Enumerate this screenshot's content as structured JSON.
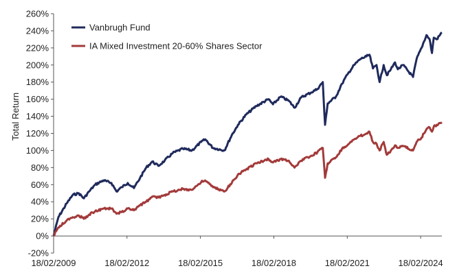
{
  "chart_data": {
    "type": "line",
    "title": "",
    "xlabel": "",
    "ylabel": "Total Return",
    "x_ticks": [
      "18/02/2009",
      "18/02/2012",
      "18/02/2015",
      "18/02/2018",
      "18/02/2021",
      "18/02/2024"
    ],
    "y_ticks": [
      "-20%",
      "0%",
      "20%",
      "40%",
      "60%",
      "80%",
      "100%",
      "120%",
      "140%",
      "160%",
      "180%",
      "200%",
      "220%",
      "240%",
      "260%"
    ],
    "ylim": [
      -20,
      260
    ],
    "x_range": [
      "2009-02-18",
      "2024-12-31"
    ],
    "grid": false,
    "legend_position": "top-left",
    "series": [
      {
        "name": "Vanbrugh Fund",
        "color": "#1f2a5c",
        "points": [
          [
            "2009-02-18",
            0
          ],
          [
            "2009-05-01",
            22
          ],
          [
            "2009-09-01",
            38
          ],
          [
            "2009-12-01",
            48
          ],
          [
            "2010-03-01",
            50
          ],
          [
            "2010-05-15",
            44
          ],
          [
            "2010-08-01",
            52
          ],
          [
            "2010-11-01",
            60
          ],
          [
            "2011-03-01",
            65
          ],
          [
            "2011-07-01",
            62
          ],
          [
            "2011-09-15",
            52
          ],
          [
            "2011-12-01",
            57
          ],
          [
            "2012-03-01",
            62
          ],
          [
            "2012-06-01",
            56
          ],
          [
            "2012-09-01",
            68
          ],
          [
            "2012-12-01",
            80
          ],
          [
            "2013-03-01",
            87
          ],
          [
            "2013-06-01",
            82
          ],
          [
            "2013-09-01",
            88
          ],
          [
            "2014-01-01",
            97
          ],
          [
            "2014-06-01",
            102
          ],
          [
            "2014-10-15",
            100
          ],
          [
            "2015-03-01",
            110
          ],
          [
            "2015-05-01",
            113
          ],
          [
            "2015-08-25",
            103
          ],
          [
            "2016-02-11",
            100
          ],
          [
            "2016-06-01",
            118
          ],
          [
            "2016-09-01",
            130
          ],
          [
            "2017-01-01",
            142
          ],
          [
            "2017-06-01",
            152
          ],
          [
            "2017-12-01",
            160
          ],
          [
            "2018-02-05",
            154
          ],
          [
            "2018-06-01",
            163
          ],
          [
            "2018-10-01",
            158
          ],
          [
            "2018-12-24",
            150
          ],
          [
            "2019-04-01",
            162
          ],
          [
            "2019-09-01",
            168
          ],
          [
            "2019-12-01",
            172
          ],
          [
            "2020-02-19",
            180
          ],
          [
            "2020-03-12",
            145
          ],
          [
            "2020-03-23",
            130
          ],
          [
            "2020-05-01",
            155
          ],
          [
            "2020-09-01",
            163
          ],
          [
            "2020-12-01",
            178
          ],
          [
            "2021-03-01",
            190
          ],
          [
            "2021-06-01",
            200
          ],
          [
            "2021-09-01",
            207
          ],
          [
            "2021-12-01",
            210
          ],
          [
            "2022-01-15",
            212
          ],
          [
            "2022-03-08",
            196
          ],
          [
            "2022-05-01",
            200
          ],
          [
            "2022-06-16",
            180
          ],
          [
            "2022-08-15",
            200
          ],
          [
            "2022-10-01",
            188
          ],
          [
            "2022-12-01",
            195
          ],
          [
            "2023-02-01",
            203
          ],
          [
            "2023-03-15",
            195
          ],
          [
            "2023-06-01",
            200
          ],
          [
            "2023-10-27",
            186
          ],
          [
            "2023-12-20",
            207
          ],
          [
            "2024-03-01",
            220
          ],
          [
            "2024-05-15",
            235
          ],
          [
            "2024-07-01",
            230
          ],
          [
            "2024-08-05",
            214
          ],
          [
            "2024-09-01",
            232
          ],
          [
            "2024-10-15",
            230
          ],
          [
            "2024-12-31",
            238
          ]
        ]
      },
      {
        "name": "IA Mixed Investment 20-60% Shares Sector",
        "color": "#a33a3a",
        "points": [
          [
            "2009-02-18",
            0
          ],
          [
            "2009-05-01",
            10
          ],
          [
            "2009-09-01",
            18
          ],
          [
            "2009-12-01",
            22
          ],
          [
            "2010-03-01",
            24
          ],
          [
            "2010-05-15",
            20
          ],
          [
            "2010-08-01",
            25
          ],
          [
            "2010-11-01",
            29
          ],
          [
            "2011-03-01",
            32
          ],
          [
            "2011-07-01",
            32
          ],
          [
            "2011-09-15",
            26
          ],
          [
            "2011-12-01",
            28
          ],
          [
            "2012-03-01",
            32
          ],
          [
            "2012-06-01",
            30
          ],
          [
            "2012-09-01",
            36
          ],
          [
            "2012-12-01",
            40
          ],
          [
            "2013-03-01",
            46
          ],
          [
            "2013-06-01",
            45
          ],
          [
            "2013-09-01",
            48
          ],
          [
            "2014-01-01",
            52
          ],
          [
            "2014-06-01",
            55
          ],
          [
            "2014-10-15",
            54
          ],
          [
            "2015-03-01",
            63
          ],
          [
            "2015-05-01",
            65
          ],
          [
            "2015-08-25",
            57
          ],
          [
            "2016-02-11",
            52
          ],
          [
            "2016-06-01",
            62
          ],
          [
            "2016-09-01",
            72
          ],
          [
            "2017-01-01",
            78
          ],
          [
            "2017-06-01",
            85
          ],
          [
            "2017-12-01",
            90
          ],
          [
            "2018-02-05",
            86
          ],
          [
            "2018-06-01",
            90
          ],
          [
            "2018-10-01",
            88
          ],
          [
            "2018-12-24",
            80
          ],
          [
            "2019-04-01",
            88
          ],
          [
            "2019-09-01",
            94
          ],
          [
            "2019-12-01",
            98
          ],
          [
            "2020-02-19",
            103
          ],
          [
            "2020-03-12",
            80
          ],
          [
            "2020-03-23",
            68
          ],
          [
            "2020-05-01",
            85
          ],
          [
            "2020-09-01",
            92
          ],
          [
            "2020-12-01",
            102
          ],
          [
            "2021-03-01",
            107
          ],
          [
            "2021-06-01",
            113
          ],
          [
            "2021-09-01",
            117
          ],
          [
            "2021-12-01",
            120
          ],
          [
            "2022-01-15",
            122
          ],
          [
            "2022-03-08",
            110
          ],
          [
            "2022-05-01",
            108
          ],
          [
            "2022-06-16",
            100
          ],
          [
            "2022-08-15",
            110
          ],
          [
            "2022-10-01",
            95
          ],
          [
            "2022-12-01",
            100
          ],
          [
            "2023-02-01",
            106
          ],
          [
            "2023-03-15",
            103
          ],
          [
            "2023-06-01",
            105
          ],
          [
            "2023-10-27",
            100
          ],
          [
            "2023-12-20",
            110
          ],
          [
            "2024-03-01",
            115
          ],
          [
            "2024-05-15",
            125
          ],
          [
            "2024-07-01",
            127
          ],
          [
            "2024-08-05",
            122
          ],
          [
            "2024-09-01",
            128
          ],
          [
            "2024-10-15",
            130
          ],
          [
            "2024-12-31",
            133
          ]
        ]
      }
    ]
  }
}
